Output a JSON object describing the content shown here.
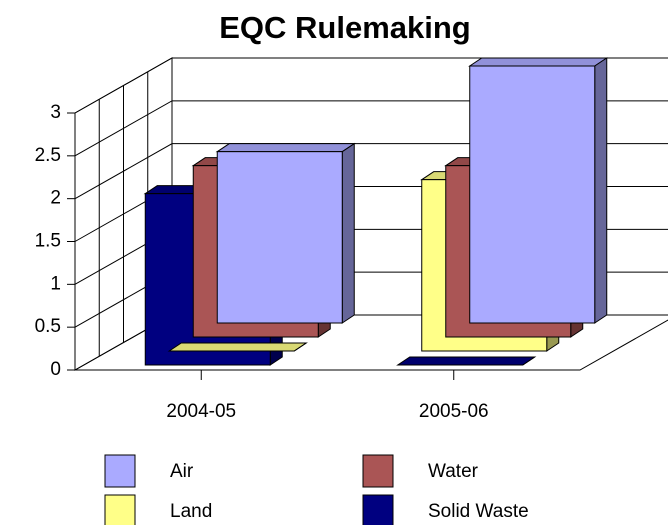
{
  "chart_data": {
    "type": "bar3d",
    "title": "EQC Rulemaking",
    "categories": [
      "2004-05",
      "2005-06"
    ],
    "series": [
      {
        "name": "Air",
        "color": "#aaaaff",
        "values": [
          2,
          3
        ]
      },
      {
        "name": "Water",
        "color": "#aa5555",
        "values": [
          2,
          2
        ]
      },
      {
        "name": "Land",
        "color": "#ffff88",
        "values": [
          0,
          2
        ]
      },
      {
        "name": "Solid Waste",
        "color": "#000080",
        "values": [
          2,
          0
        ]
      }
    ],
    "ylim": [
      0,
      3
    ],
    "yticks": [
      0,
      0.5,
      1,
      1.5,
      2,
      2.5,
      3
    ],
    "grid": true,
    "legend": "bottom"
  }
}
